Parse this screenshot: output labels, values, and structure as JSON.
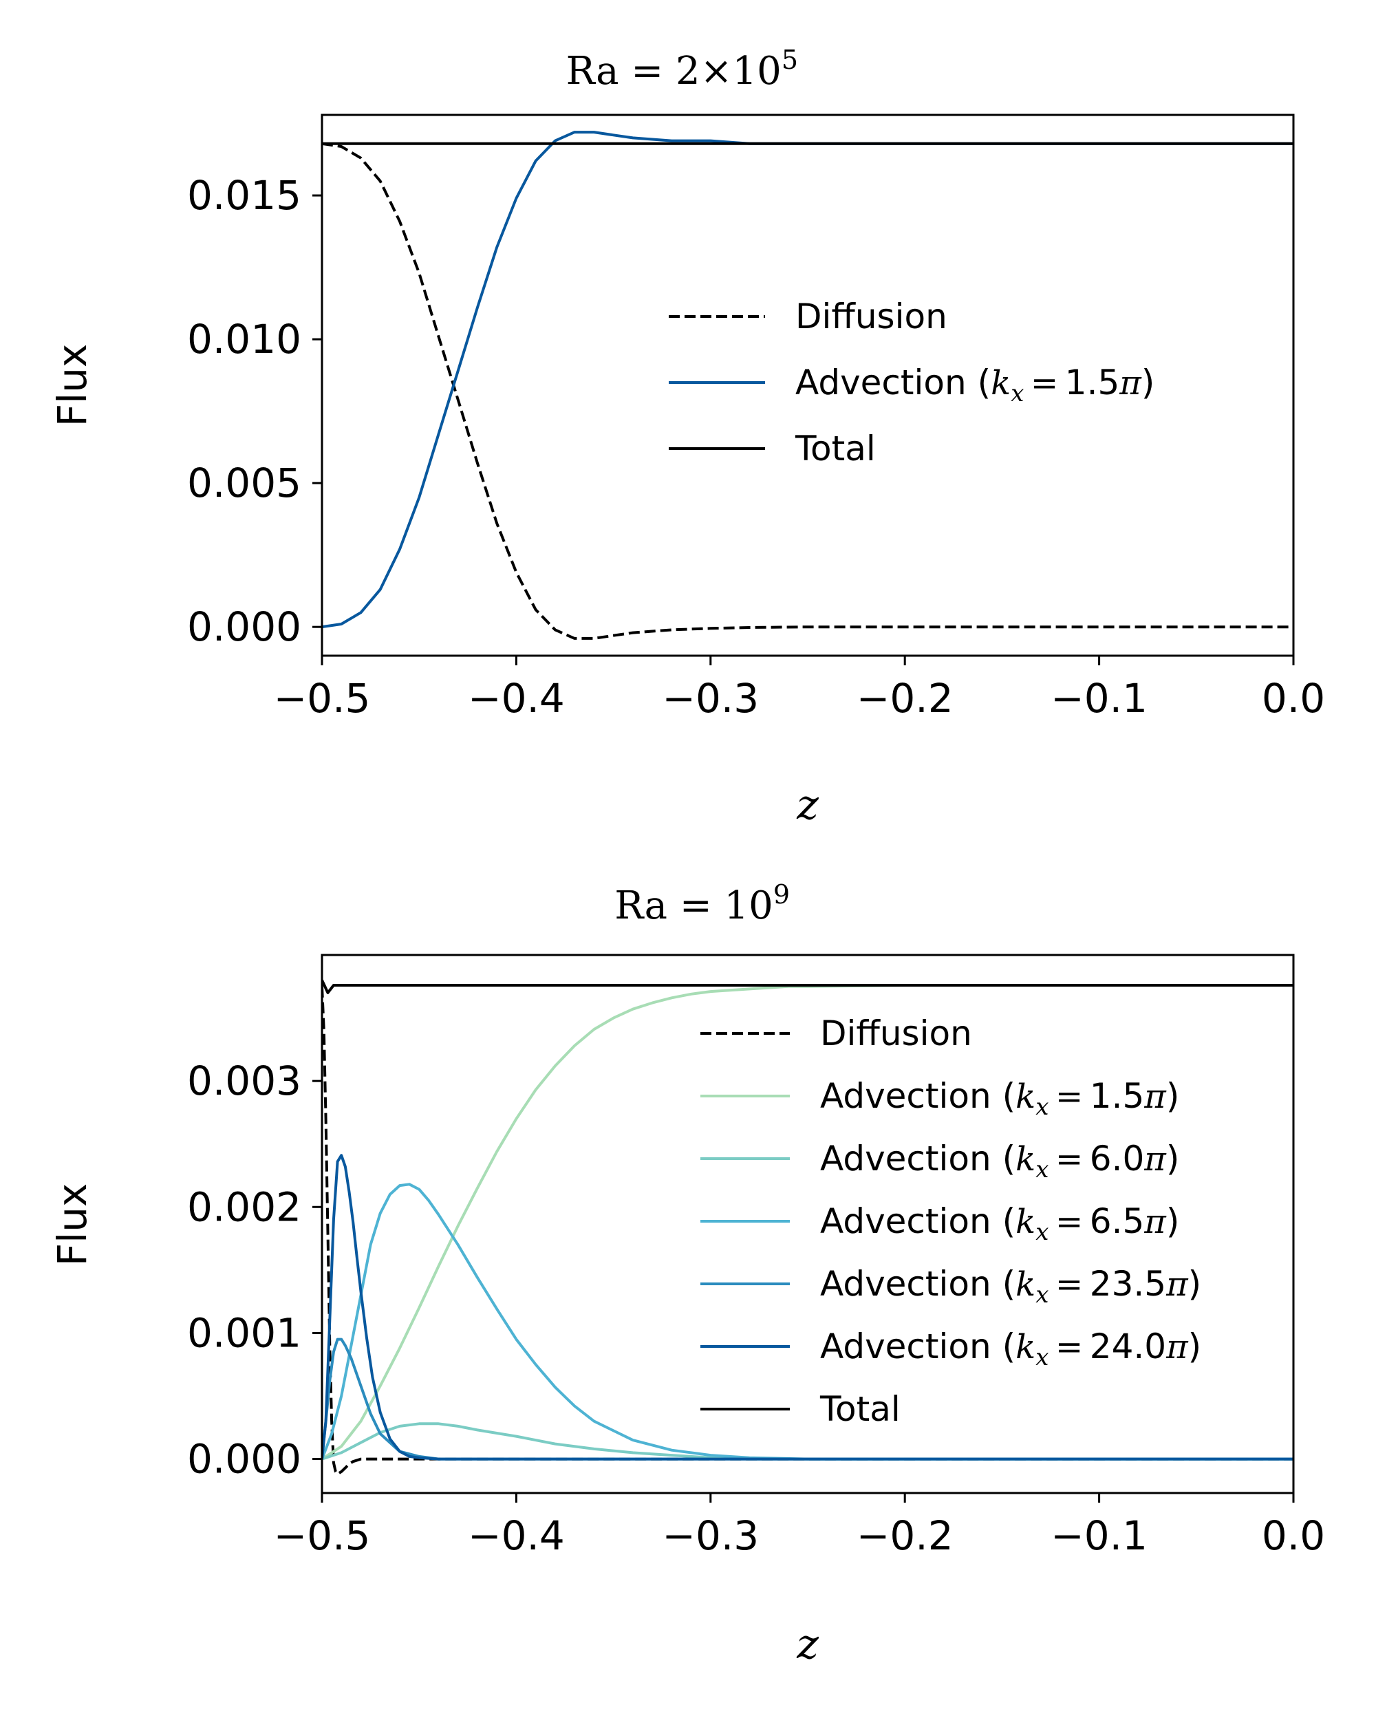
{
  "chart_data": [
    {
      "type": "line",
      "title": {
        "base": "Ra = 2×10",
        "sup": "5"
      },
      "xlabel": "z",
      "ylabel": "Flux",
      "xlim": [
        -0.5,
        0.0
      ],
      "ylim": [
        -0.001,
        0.0178
      ],
      "xticks": [
        -0.5,
        -0.4,
        -0.3,
        -0.2,
        -0.1,
        0.0
      ],
      "xtick_labels": [
        "−0.5",
        "−0.4",
        "−0.3",
        "−0.2",
        "−0.1",
        "0.0"
      ],
      "yticks": [
        0.0,
        0.005,
        0.01,
        0.015
      ],
      "ytick_labels": [
        "0.000",
        "0.005",
        "0.010",
        "0.015"
      ],
      "grid": false,
      "legend_position": "center-right",
      "series": [
        {
          "name": "Diffusion",
          "legend_label": "Diffusion",
          "legend_math": "",
          "color": "#000000",
          "dash": "dashed",
          "x": [
            -0.5,
            -0.49,
            -0.48,
            -0.47,
            -0.46,
            -0.45,
            -0.44,
            -0.43,
            -0.42,
            -0.41,
            -0.4,
            -0.39,
            -0.38,
            -0.37,
            -0.36,
            -0.35,
            -0.34,
            -0.32,
            -0.3,
            -0.28,
            -0.25,
            -0.2,
            -0.1,
            0.0
          ],
          "values": [
            0.0168,
            0.0167,
            0.0163,
            0.0155,
            0.0141,
            0.0123,
            0.0101,
            0.0079,
            0.0057,
            0.0036,
            0.0019,
            0.0006,
            -0.0001,
            -0.0004,
            -0.0004,
            -0.0003,
            -0.0002,
            -0.0001,
            -5e-05,
            -2e-05,
            0.0,
            0.0,
            0.0,
            0.0
          ]
        },
        {
          "name": "Advection (kx = 1.5π)",
          "legend_label": "Advection (",
          "legend_math": "1.5π",
          "color": "#08589e",
          "dash": "solid",
          "x": [
            -0.5,
            -0.49,
            -0.48,
            -0.47,
            -0.46,
            -0.45,
            -0.44,
            -0.43,
            -0.42,
            -0.41,
            -0.4,
            -0.39,
            -0.38,
            -0.37,
            -0.36,
            -0.35,
            -0.34,
            -0.32,
            -0.3,
            -0.28,
            -0.25,
            -0.2,
            -0.1,
            0.0
          ],
          "values": [
            0.0,
            0.0001,
            0.0005,
            0.0013,
            0.0027,
            0.0045,
            0.0067,
            0.0089,
            0.0111,
            0.0132,
            0.0149,
            0.0162,
            0.0169,
            0.0172,
            0.0172,
            0.0171,
            0.017,
            0.0169,
            0.0169,
            0.0168,
            0.0168,
            0.0168,
            0.0168,
            0.0168
          ]
        },
        {
          "name": "Total",
          "legend_label": "Total",
          "legend_math": "",
          "color": "#000000",
          "dash": "solid",
          "x": [
            -0.5,
            0.0
          ],
          "values": [
            0.0168,
            0.0168
          ]
        }
      ]
    },
    {
      "type": "line",
      "title": {
        "base": "Ra = 10",
        "sup": "9"
      },
      "xlabel": "z",
      "ylabel": "Flux",
      "xlim": [
        -0.5,
        0.0
      ],
      "ylim": [
        -0.00027,
        0.004
      ],
      "xticks": [
        -0.5,
        -0.4,
        -0.3,
        -0.2,
        -0.1,
        0.0
      ],
      "xtick_labels": [
        "−0.5",
        "−0.4",
        "−0.3",
        "−0.2",
        "−0.1",
        "0.0"
      ],
      "yticks": [
        0.0,
        0.001,
        0.002,
        0.003
      ],
      "ytick_labels": [
        "0.000",
        "0.001",
        "0.002",
        "0.003"
      ],
      "grid": false,
      "legend_position": "upper-right",
      "series": [
        {
          "name": "Diffusion",
          "legend_label": "Diffusion",
          "legend_math": "",
          "color": "#000000",
          "dash": "dashed",
          "x": [
            -0.5,
            -0.499,
            -0.498,
            -0.497,
            -0.496,
            -0.495,
            -0.494,
            -0.493,
            -0.492,
            -0.491,
            -0.49,
            -0.488,
            -0.486,
            -0.484,
            -0.48,
            -0.47,
            -0.45,
            -0.4,
            -0.3,
            -0.2,
            -0.1,
            0.0
          ],
          "values": [
            0.00375,
            0.0034,
            0.0027,
            0.0018,
            0.0009,
            0.0003,
            -3e-05,
            -0.0001,
            -0.00012,
            -0.00011,
            -0.0001,
            -7e-05,
            -4e-05,
            -2e-05,
            0.0,
            0.0,
            0.0,
            0.0,
            0.0,
            0.0,
            0.0,
            0.0
          ]
        },
        {
          "name": "Advection (kx = 1.5π)",
          "legend_label": "Advection (",
          "legend_math": "1.5π",
          "color": "#a8ddb5",
          "dash": "solid",
          "x": [
            -0.5,
            -0.49,
            -0.48,
            -0.47,
            -0.46,
            -0.45,
            -0.44,
            -0.43,
            -0.42,
            -0.41,
            -0.4,
            -0.39,
            -0.38,
            -0.37,
            -0.36,
            -0.35,
            -0.34,
            -0.33,
            -0.32,
            -0.31,
            -0.3,
            -0.29,
            -0.28,
            -0.27,
            -0.26,
            -0.25,
            -0.2,
            -0.1,
            0.0
          ],
          "values": [
            0.0,
            0.0001,
            0.0003,
            0.00058,
            0.00088,
            0.0012,
            0.00153,
            0.00185,
            0.00215,
            0.00244,
            0.0027,
            0.00293,
            0.00312,
            0.00328,
            0.00341,
            0.0035,
            0.00357,
            0.00362,
            0.00366,
            0.00369,
            0.00371,
            0.00372,
            0.00373,
            0.00374,
            0.00375,
            0.00375,
            0.00376,
            0.00376,
            0.00376
          ]
        },
        {
          "name": "Advection (kx = 6.0π)",
          "legend_label": "Advection (",
          "legend_math": "6.0π",
          "color": "#7bccc4",
          "dash": "solid",
          "x": [
            -0.5,
            -0.49,
            -0.48,
            -0.47,
            -0.46,
            -0.45,
            -0.44,
            -0.43,
            -0.42,
            -0.4,
            -0.38,
            -0.36,
            -0.34,
            -0.32,
            -0.3,
            -0.28,
            -0.25,
            -0.2,
            -0.1,
            0.0
          ],
          "values": [
            0.0,
            5e-05,
            0.00013,
            0.00021,
            0.00026,
            0.00028,
            0.00028,
            0.00026,
            0.00023,
            0.00018,
            0.00012,
            8e-05,
            5e-05,
            3e-05,
            1e-05,
            0.0,
            0.0,
            0.0,
            0.0,
            0.0
          ]
        },
        {
          "name": "Advection (kx = 6.5π)",
          "legend_label": "Advection (",
          "legend_math": "6.5π",
          "color": "#4eb3d3",
          "dash": "solid",
          "x": [
            -0.5,
            -0.495,
            -0.49,
            -0.485,
            -0.48,
            -0.475,
            -0.47,
            -0.465,
            -0.46,
            -0.455,
            -0.45,
            -0.445,
            -0.44,
            -0.43,
            -0.42,
            -0.41,
            -0.4,
            -0.39,
            -0.38,
            -0.37,
            -0.36,
            -0.34,
            -0.32,
            -0.3,
            -0.28,
            -0.25,
            -0.2,
            -0.1,
            0.0
          ],
          "values": [
            0.0,
            0.0002,
            0.0005,
            0.0009,
            0.0013,
            0.0017,
            0.00195,
            0.0021,
            0.00217,
            0.00218,
            0.00214,
            0.00205,
            0.00194,
            0.0017,
            0.00144,
            0.00119,
            0.00095,
            0.00075,
            0.00057,
            0.00042,
            0.0003,
            0.00015,
            7e-05,
            3e-05,
            1e-05,
            0.0,
            0.0,
            0.0,
            0.0
          ]
        },
        {
          "name": "Advection (kx = 23.5π)",
          "legend_label": "Advection (",
          "legend_math": "23.5π",
          "color": "#2b8cbe",
          "dash": "solid",
          "x": [
            -0.5,
            -0.498,
            -0.496,
            -0.494,
            -0.492,
            -0.49,
            -0.488,
            -0.485,
            -0.48,
            -0.475,
            -0.47,
            -0.46,
            -0.45,
            -0.44,
            -0.43,
            -0.4,
            -0.3,
            -0.2,
            -0.1,
            0.0
          ],
          "values": [
            0.0,
            0.0003,
            0.00062,
            0.00085,
            0.00095,
            0.00095,
            0.0009,
            0.0008,
            0.00058,
            0.00036,
            0.0002,
            6e-05,
            2e-05,
            0.0,
            0.0,
            0.0,
            0.0,
            0.0,
            0.0,
            0.0
          ]
        },
        {
          "name": "Advection (kx = 24.0π)",
          "legend_label": "Advection (",
          "legend_math": "24.0π",
          "color": "#08589e",
          "dash": "solid",
          "x": [
            -0.5,
            -0.498,
            -0.496,
            -0.494,
            -0.492,
            -0.49,
            -0.488,
            -0.486,
            -0.484,
            -0.482,
            -0.48,
            -0.477,
            -0.474,
            -0.47,
            -0.465,
            -0.46,
            -0.455,
            -0.45,
            -0.44,
            -0.43,
            -0.4,
            -0.3,
            -0.2,
            -0.1,
            0.0
          ],
          "values": [
            0.0,
            0.0003,
            0.0011,
            0.0019,
            0.00236,
            0.00241,
            0.00232,
            0.00212,
            0.00188,
            0.0016,
            0.00133,
            0.00096,
            0.00065,
            0.00037,
            0.00016,
            6e-05,
            2e-05,
            1e-05,
            0.0,
            0.0,
            0.0,
            0.0,
            0.0,
            0.0,
            0.0
          ]
        },
        {
          "name": "Total",
          "legend_label": "Total",
          "legend_math": "",
          "color": "#000000",
          "dash": "solid",
          "x": [
            -0.5,
            -0.497,
            -0.494,
            0.0
          ],
          "values": [
            0.0038,
            0.0037,
            0.00376,
            0.00376
          ]
        }
      ]
    }
  ]
}
